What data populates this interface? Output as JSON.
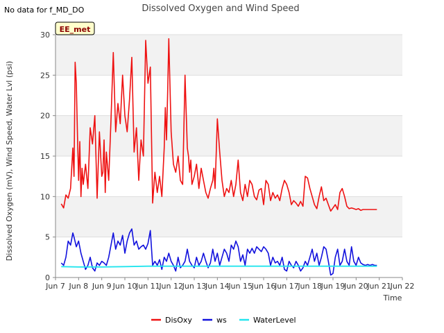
{
  "corner_note": "No data for f_MD_DO",
  "badge": "EE_met",
  "colors": {
    "DisOxy": "#ee1111",
    "ws": "#1111dd",
    "WaterLevel": "#22e5ee",
    "band": "#f2f2f2",
    "badge_bg": "#ffffcc",
    "badge_text": "#8b0000"
  },
  "chart_data": {
    "type": "line",
    "title": "Dissolved Oxygen and Wind Speed",
    "xlabel": "Time",
    "ylabel": "Dissolved Oxygen (mV), Wind Speed, Water Lvl (psi)",
    "xlim": [
      "Jun 7",
      "Jun 22"
    ],
    "ylim": [
      0,
      30
    ],
    "x_ticks": [
      "Jun 7",
      "Jun 8",
      "Jun 9",
      "Jun 10",
      "Jun 11",
      "Jun 12",
      "Jun 13",
      "Jun 14",
      "Jun 15",
      "Jun 16",
      "Jun 17",
      "Jun 18",
      "Jun 19",
      "Jun 20",
      "Jun 21",
      "Jun 22"
    ],
    "y_ticks": [
      0,
      5,
      10,
      15,
      20,
      25,
      30
    ],
    "legend_position": "bottom-center",
    "series": [
      {
        "name": "DisOxy",
        "x": [
          7.25,
          7.35,
          7.45,
          7.55,
          7.65,
          7.75,
          7.8,
          7.85,
          7.9,
          7.95,
          8.0,
          8.05,
          8.1,
          8.15,
          8.2,
          8.3,
          8.4,
          8.5,
          8.6,
          8.7,
          8.8,
          8.9,
          9.0,
          9.05,
          9.1,
          9.15,
          9.2,
          9.3,
          9.4,
          9.5,
          9.6,
          9.7,
          9.8,
          9.9,
          10.0,
          10.1,
          10.2,
          10.3,
          10.4,
          10.5,
          10.6,
          10.7,
          10.8,
          10.9,
          11.0,
          11.1,
          11.2,
          11.3,
          11.4,
          11.5,
          11.6,
          11.7,
          11.75,
          11.8,
          11.85,
          11.9,
          12.0,
          12.1,
          12.2,
          12.3,
          12.4,
          12.5,
          12.6,
          12.7,
          12.75,
          12.8,
          12.85,
          12.9,
          13.0,
          13.1,
          13.2,
          13.3,
          13.4,
          13.5,
          13.6,
          13.7,
          13.8,
          13.85,
          13.9,
          14.0,
          14.1,
          14.2,
          14.3,
          14.4,
          14.5,
          14.6,
          14.7,
          14.8,
          14.9,
          15.0,
          15.1,
          15.2,
          15.3,
          15.4,
          15.5,
          15.6,
          15.7,
          15.8,
          15.9,
          16.0,
          16.1,
          16.2,
          16.3,
          16.4,
          16.5,
          16.6,
          16.7,
          16.8,
          16.9,
          17.0,
          17.1,
          17.2,
          17.3,
          17.4,
          17.5,
          17.6,
          17.7,
          17.8,
          17.9,
          18.0,
          18.1,
          18.2,
          18.3,
          18.4,
          18.5,
          18.6,
          18.7,
          18.8,
          18.9,
          19.0,
          19.1,
          19.2,
          19.3,
          19.4,
          19.5,
          19.6,
          19.7,
          19.8,
          19.9,
          20.0,
          20.1,
          20.2,
          20.3,
          20.4,
          20.5,
          20.6,
          20.7,
          20.8,
          20.9
        ],
        "values": [
          9.1,
          8.6,
          10.2,
          9.8,
          11.0,
          16.0,
          12.5,
          26.6,
          24.0,
          17.5,
          12.0,
          16.8,
          10.0,
          13.5,
          11.5,
          14.0,
          11.0,
          18.5,
          16.5,
          20.0,
          9.8,
          18.0,
          12.5,
          13.0,
          17.0,
          10.5,
          15.5,
          12.0,
          19.5,
          27.8,
          18.0,
          21.5,
          19.0,
          25.0,
          20.0,
          18.0,
          22.0,
          27.2,
          15.5,
          18.5,
          12.0,
          17.0,
          15.0,
          29.3,
          24.0,
          26.0,
          9.2,
          13.0,
          10.5,
          12.5,
          10.0,
          16.0,
          21.0,
          17.0,
          23.0,
          29.5,
          18.0,
          14.0,
          13.0,
          15.0,
          12.0,
          11.5,
          25.0,
          16.0,
          15.0,
          13.0,
          14.5,
          11.5,
          12.5,
          14.0,
          11.0,
          13.5,
          12.0,
          10.5,
          9.8,
          11.0,
          12.0,
          13.5,
          11.0,
          19.6,
          15.5,
          12.0,
          10.0,
          11.0,
          10.5,
          12.0,
          10.0,
          11.5,
          14.5,
          10.5,
          9.5,
          11.5,
          10.0,
          12.0,
          11.5,
          10.0,
          9.6,
          10.8,
          11.0,
          9.0,
          12.0,
          11.5,
          9.5,
          10.5,
          9.8,
          10.2,
          9.5,
          11.0,
          12.0,
          11.5,
          10.5,
          9.0,
          9.5,
          9.2,
          8.8,
          9.4,
          8.8,
          12.5,
          12.3,
          11.0,
          10.0,
          9.0,
          8.5,
          10.0,
          11.2,
          9.5,
          9.8,
          9.0,
          8.2,
          8.6,
          9.0,
          8.4,
          10.5,
          11.0,
          10.0,
          8.8,
          8.5,
          8.6,
          8.5,
          8.4,
          8.5,
          8.3,
          8.4,
          8.4,
          8.4,
          8.4,
          8.4,
          8.4,
          8.4
        ]
      },
      {
        "name": "ws",
        "x": [
          7.25,
          7.35,
          7.45,
          7.55,
          7.65,
          7.75,
          7.8,
          7.9,
          8.0,
          8.1,
          8.2,
          8.3,
          8.4,
          8.5,
          8.6,
          8.7,
          8.8,
          8.9,
          9.0,
          9.1,
          9.2,
          9.3,
          9.4,
          9.5,
          9.6,
          9.7,
          9.8,
          9.9,
          10.0,
          10.1,
          10.2,
          10.3,
          10.4,
          10.5,
          10.6,
          10.7,
          10.8,
          10.9,
          11.0,
          11.1,
          11.2,
          11.3,
          11.4,
          11.5,
          11.6,
          11.7,
          11.8,
          11.9,
          12.0,
          12.1,
          12.2,
          12.3,
          12.4,
          12.5,
          12.6,
          12.7,
          12.8,
          12.9,
          13.0,
          13.1,
          13.2,
          13.3,
          13.4,
          13.5,
          13.6,
          13.7,
          13.8,
          13.9,
          14.0,
          14.1,
          14.2,
          14.3,
          14.4,
          14.5,
          14.6,
          14.7,
          14.8,
          14.9,
          15.0,
          15.1,
          15.2,
          15.3,
          15.4,
          15.5,
          15.6,
          15.7,
          15.8,
          15.9,
          16.0,
          16.1,
          16.2,
          16.3,
          16.4,
          16.5,
          16.6,
          16.7,
          16.8,
          16.9,
          17.0,
          17.1,
          17.2,
          17.3,
          17.4,
          17.5,
          17.6,
          17.7,
          17.8,
          17.9,
          18.0,
          18.1,
          18.2,
          18.3,
          18.4,
          18.5,
          18.6,
          18.7,
          18.8,
          18.9,
          19.0,
          19.1,
          19.2,
          19.3,
          19.4,
          19.5,
          19.6,
          19.7,
          19.8,
          19.9,
          20.0,
          20.1,
          20.2,
          20.3,
          20.4,
          20.5,
          20.6,
          20.7,
          20.8,
          20.9
        ],
        "values": [
          1.8,
          1.5,
          2.5,
          4.5,
          4.0,
          5.5,
          5.0,
          3.8,
          4.5,
          3.0,
          2.0,
          1.0,
          1.5,
          2.5,
          1.2,
          0.8,
          1.8,
          1.5,
          2.0,
          1.8,
          1.5,
          2.5,
          4.0,
          5.5,
          3.5,
          4.5,
          4.0,
          5.2,
          3.0,
          4.5,
          5.5,
          6.0,
          4.0,
          4.5,
          3.5,
          3.8,
          4.0,
          3.5,
          4.2,
          5.8,
          1.5,
          2.0,
          1.5,
          2.2,
          1.0,
          2.5,
          2.0,
          3.0,
          2.0,
          1.5,
          0.8,
          2.5,
          1.2,
          1.5,
          2.0,
          3.5,
          2.0,
          1.5,
          1.2,
          2.5,
          1.5,
          2.0,
          3.0,
          2.0,
          1.2,
          1.8,
          3.5,
          2.0,
          3.0,
          1.5,
          2.5,
          3.5,
          3.0,
          2.0,
          4.0,
          3.5,
          4.5,
          3.8,
          2.0,
          2.8,
          1.5,
          3.5,
          3.0,
          3.6,
          3.0,
          3.8,
          3.5,
          3.2,
          3.8,
          3.5,
          3.0,
          1.5,
          2.5,
          1.8,
          2.0,
          1.5,
          2.5,
          1.0,
          0.8,
          2.0,
          1.5,
          1.2,
          2.0,
          1.5,
          0.8,
          1.2,
          2.0,
          1.5,
          2.5,
          3.5,
          2.0,
          3.0,
          1.5,
          2.5,
          3.8,
          3.5,
          2.0,
          0.3,
          0.5,
          2.5,
          3.5,
          1.5,
          2.0,
          3.5,
          2.0,
          1.5,
          3.8,
          2.0,
          1.5,
          2.5,
          1.8,
          1.6,
          1.5,
          1.6,
          1.5,
          1.6,
          1.5,
          1.5
        ]
      },
      {
        "name": "WaterLevel",
        "x": [
          7.25,
          8.0,
          9.0,
          10.0,
          11.0,
          12.0,
          13.0,
          14.0,
          15.0,
          16.0,
          17.0,
          18.0,
          19.0,
          20.0,
          20.9
        ],
        "values": [
          1.35,
          1.3,
          1.3,
          1.35,
          1.4,
          1.4,
          1.4,
          1.4,
          1.4,
          1.4,
          1.4,
          1.4,
          1.4,
          1.4,
          1.4
        ]
      }
    ]
  }
}
